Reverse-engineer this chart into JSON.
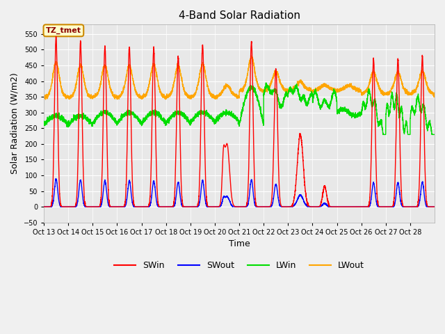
{
  "title": "4-Band Solar Radiation",
  "xlabel": "Time",
  "ylabel": "Solar Radiation (W/m2)",
  "ylim": [
    -50,
    580
  ],
  "yticks": [
    -50,
    0,
    50,
    100,
    150,
    200,
    250,
    300,
    350,
    400,
    450,
    500,
    550
  ],
  "plot_bg": "#e8e8e8",
  "fig_bg": "#f0f0f0",
  "colors": {
    "SWin": "#ff0000",
    "SWout": "#0000ff",
    "LWin": "#00dd00",
    "LWout": "#ffa500"
  },
  "annotation_text": "TZ_tmet",
  "annotation_bg": "#ffffcc",
  "annotation_border": "#cc8800",
  "n_days": 16,
  "x_tick_labels": [
    "Oct 13",
    "Oct 14",
    "Oct 15",
    "Oct 16",
    "Oct 17",
    "Oct 18",
    "Oct 19",
    "Oct 20",
    "Oct 21",
    "Oct 22",
    "Oct 23",
    "Oct 24",
    "Oct 25",
    "Oct 26",
    "Oct 27",
    "Oct 28"
  ],
  "line_width": 1.0,
  "figsize": [
    6.4,
    4.8
  ],
  "dpi": 100
}
